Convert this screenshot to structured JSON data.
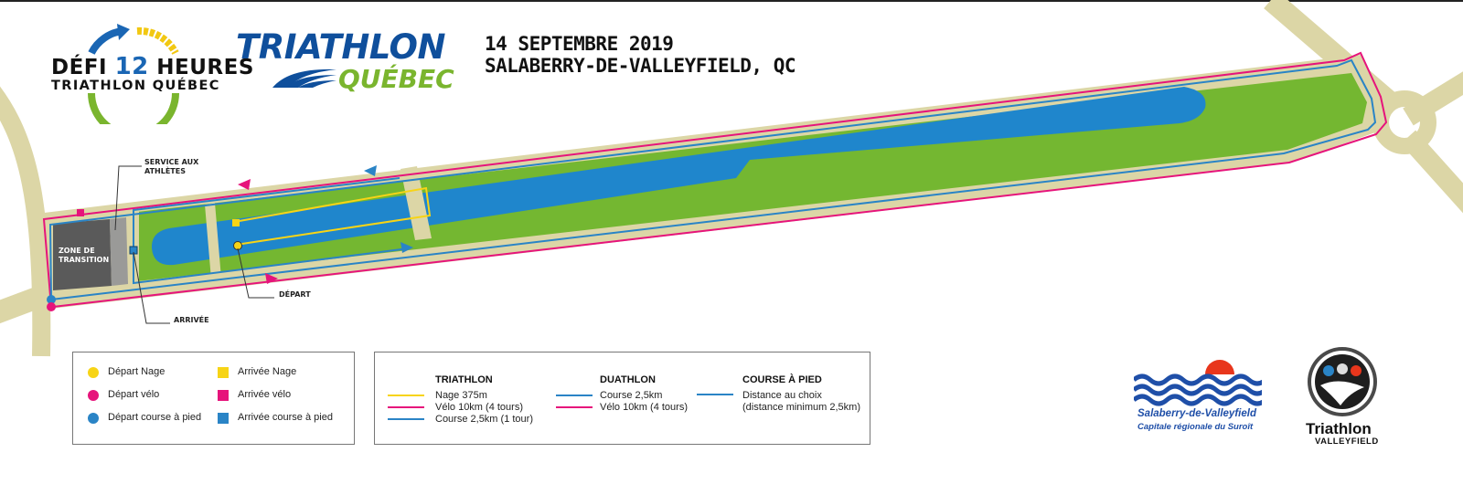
{
  "header": {
    "defi_line1_a": "DÉFI",
    "defi_number": "12",
    "defi_line1_b": "HEURES",
    "defi_line2": "TRIATHLON QUÉBEC",
    "tq_line1": "TRIATHLON",
    "tq_line2": "QUÉBEC",
    "date": "14 SEPTEMBRE 2019",
    "place": "SALABERRY-DE-VALLEYFIELD, QC"
  },
  "map_labels": {
    "service_line1": "SERVICE AUX",
    "service_line2": "ATHLÈTES",
    "arrivee": "ARRIVÉE",
    "depart": "DÉPART",
    "zone_line1": "ZONE DE",
    "zone_line2": "TRANSITION"
  },
  "legend_markers": [
    {
      "label": "Départ Nage",
      "shape": "circle",
      "color": "#f7d416"
    },
    {
      "label": "Départ vélo",
      "shape": "circle",
      "color": "#e6147b"
    },
    {
      "label": "Départ course à pied",
      "shape": "circle",
      "color": "#2a84c6"
    },
    {
      "label": "Arrivée Nage",
      "shape": "square",
      "color": "#f7d416"
    },
    {
      "label": "Arrivée vélo",
      "shape": "square",
      "color": "#e6147b"
    },
    {
      "label": "Arrivée course à pied",
      "shape": "square",
      "color": "#2a84c6"
    }
  ],
  "legend_courses": {
    "triathlon": {
      "title": "TRIATHLON",
      "items": [
        {
          "label": "Nage 375m",
          "color": "#f7d416"
        },
        {
          "label": "Vélo 10km (4 tours)",
          "color": "#e6147b"
        },
        {
          "label": "Course 2,5km (1 tour)",
          "color": "#2a84c6"
        }
      ]
    },
    "duathlon": {
      "title": "DUATHLON",
      "items": [
        {
          "label": "Course 2,5km",
          "color": "#2a84c6"
        },
        {
          "label": "Vélo 10km (4 tours)",
          "color": "#e6147b"
        }
      ]
    },
    "course": {
      "title": "COURSE À PIED",
      "line1": "Distance au choix",
      "line2": "(distance minimum 2,5km)",
      "color": "#2a84c6"
    }
  },
  "sponsors": {
    "sdv_name": "Salaberry-de-Valleyfield",
    "sdv_tag": "Capitale régionale du Suroît",
    "tv_name": "Triathlon",
    "tv_sub": "VALLEYFIELD"
  },
  "colors": {
    "road": "#dcd6a6",
    "grass": "#74b731",
    "water": "#1f86cc",
    "bike": "#e6147b",
    "run": "#2a84c6",
    "swim": "#f7d416",
    "transition": "#5a5a5a"
  }
}
